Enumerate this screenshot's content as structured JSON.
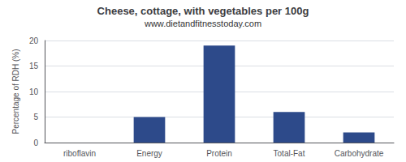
{
  "chart_data": {
    "type": "bar",
    "title": "Cheese, cottage, with vegetables per 100g",
    "subtitle": "www.dietandfitnesstoday.com",
    "categories": [
      "riboflavin",
      "Energy",
      "Protein",
      "Total-Fat",
      "Carbohydrate"
    ],
    "values": [
      0.0,
      5.0,
      19.0,
      6.0,
      2.0
    ],
    "color": "#2d4a8a",
    "ylabel": "Percentage of RDH (%)",
    "ylim": [
      0,
      20
    ],
    "yticks": [
      0,
      5,
      10,
      15,
      20
    ],
    "grid": true
  }
}
